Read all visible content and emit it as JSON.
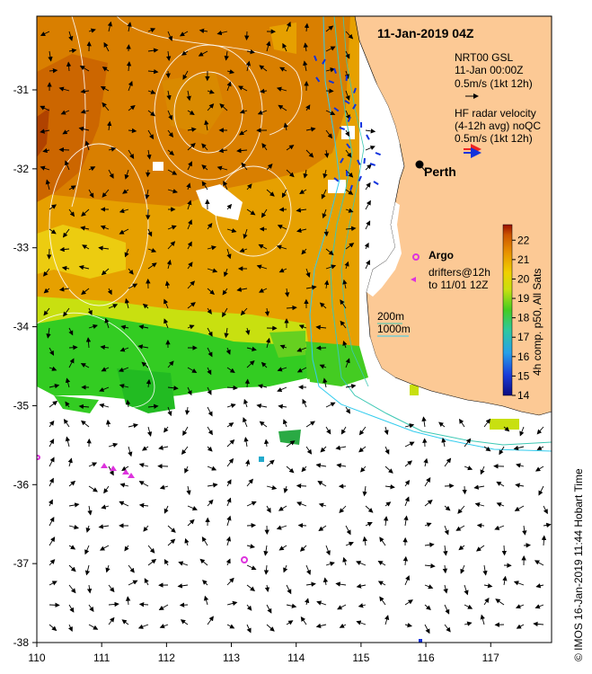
{
  "title": "11-Jan-2019 04Z",
  "legend": {
    "model_line1": "NRT00 GSL",
    "model_line2": "11-Jan 00:00Z",
    "model_line3": "0.5m/s (1kt 12h)",
    "radar_line1": "HF radar velocity",
    "radar_line2": "(4-12h avg) noQC",
    "radar_line3": "0.5m/s (1kt 12h)",
    "argo": "Argo",
    "drifters_line1": "drifters@12h",
    "drifters_line2": "to 11/01 12Z",
    "contour_200": "200m",
    "contour_1000": "1000m"
  },
  "place": "Perth",
  "colorbar": {
    "label": "4h comp. p50, All Sats",
    "ticks": [
      "14",
      "15",
      "16",
      "17",
      "18",
      "19",
      "20",
      "21",
      "22"
    ],
    "min": 14,
    "max": 22.8
  },
  "axes": {
    "x_ticks": [
      "110",
      "111",
      "112",
      "113",
      "114",
      "115",
      "116",
      "117"
    ],
    "y_ticks": [
      "-31",
      "-32",
      "-33",
      "-34",
      "-35",
      "-36",
      "-37",
      "-38"
    ]
  },
  "credit": "© IMOS 16-Jan-2019 11:44 Hobart Time",
  "colors": {
    "land": "#fcc995",
    "sst_warm": "#d97f00",
    "sst_orange": "#e6a000",
    "sst_yellow": "#eedd00",
    "sst_green": "#33cc22",
    "isobath_200": "#3dc8b4",
    "isobath_1000": "#33ccee",
    "radar": "#1133dd",
    "argo": "#dd33dd"
  }
}
